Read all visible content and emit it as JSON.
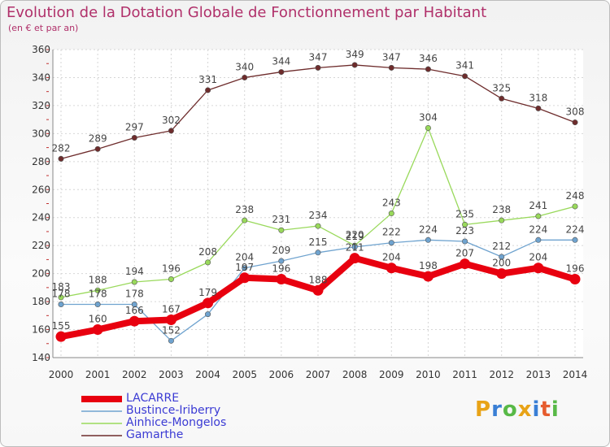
{
  "title": "Evolution de la Dotation Globale de Fonctionnement par Habitant",
  "subtitle": "(en € et par an)",
  "logo": {
    "text": "Proxiti",
    "colors": [
      "#e8a317",
      "#3a7fd5",
      "#58b947",
      "#e8a317",
      "#3a7fd5",
      "#e65c2e",
      "#58b947"
    ]
  },
  "colors": {
    "LACARRE": "#e8000f",
    "Bustince-Iriberry": "#6fa3cf",
    "Ainhice-Mongelos": "#99d95b",
    "Gamarthe": "#6e2c2c"
  },
  "chart_data": {
    "type": "line",
    "title": "Evolution de la Dotation Globale de Fonctionnement par Habitant",
    "subtitle": "(en € et par an)",
    "xlabel": "",
    "ylabel": "",
    "ylim": [
      140,
      360
    ],
    "yticks": [
      140,
      160,
      180,
      200,
      220,
      240,
      260,
      280,
      300,
      320,
      340,
      360
    ],
    "categories": [
      "2000",
      "2001",
      "2002",
      "2003",
      "2004",
      "2005",
      "2006",
      "2007",
      "2008",
      "2009",
      "2010",
      "2011",
      "2012",
      "2013",
      "2014"
    ],
    "grid": true,
    "legend_position": "bottom-left",
    "series": [
      {
        "name": "Gamarthe",
        "values": [
          282,
          289,
          297,
          302,
          331,
          340,
          344,
          347,
          349,
          347,
          346,
          341,
          325,
          318,
          308
        ]
      },
      {
        "name": "Ainhice-Mongelos",
        "values": [
          183,
          188,
          194,
          196,
          208,
          238,
          231,
          234,
          220,
          243,
          304,
          235,
          238,
          241,
          248
        ]
      },
      {
        "name": "Bustince-Iriberry",
        "values": [
          178,
          178,
          178,
          152,
          171,
          204,
          209,
          215,
          219,
          222,
          224,
          223,
          212,
          224,
          224
        ]
      },
      {
        "name": "LACARRE",
        "values": [
          155,
          160,
          166,
          167,
          179,
          197,
          196,
          188,
          211,
          204,
          198,
          207,
          200,
          204,
          196
        ]
      }
    ],
    "data_labels": {
      "Gamarthe": [
        "282",
        "289",
        "297",
        "302",
        "331",
        "340",
        "344",
        "347",
        "349",
        "347",
        "346",
        "341",
        "325",
        "318",
        "308"
      ],
      "Ainhice-Mongelos": [
        "183",
        "188",
        "194",
        "196",
        "208",
        "238",
        "231",
        "234",
        "220",
        "243",
        "304",
        "235",
        "238",
        "241",
        "248"
      ],
      "Bustince-Iriberry": [
        "178",
        "178",
        "178",
        "152",
        "",
        "204",
        "209",
        "215",
        "219",
        "222",
        "224",
        "223",
        "212",
        "224",
        "224"
      ],
      "LACARRE": [
        "155",
        "160",
        "166",
        "167",
        "179",
        "197",
        "196",
        "188",
        "211",
        "204",
        "198",
        "207",
        "200",
        "204",
        "196"
      ]
    }
  }
}
